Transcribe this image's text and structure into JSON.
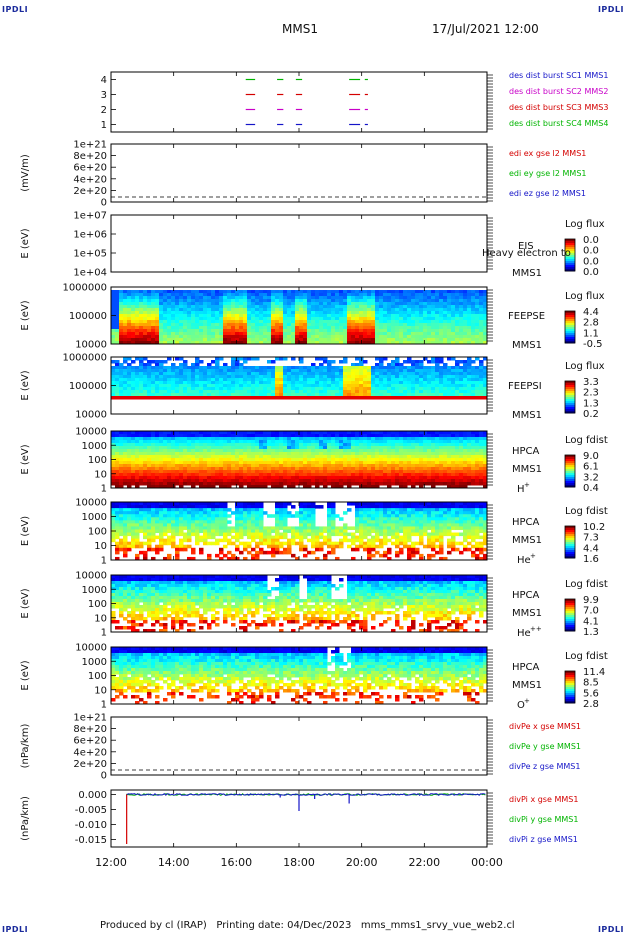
{
  "header": {
    "spacecraft": "MMS1",
    "datetime": "17/Jul/2021 12:00"
  },
  "corners": {
    "tl": "IPDLI",
    "tr": "IPDLI",
    "bl": "IPDLI",
    "br": "IPDLI"
  },
  "footer": {
    "produced": "Produced by cl (IRAP)",
    "printed": "Printing date: 04/Dec/2023",
    "script": "mms_mms1_srvy_vue_web2.cl"
  },
  "colors": {
    "sc1": "#1515c8",
    "sc2": "#c800c8",
    "sc3": "#d40000",
    "sc4": "#00b400",
    "frame": "#000000"
  },
  "chart_data": [
    {
      "type": "line",
      "panel": "burst",
      "ylim": [
        0.5,
        4.5
      ],
      "yticks": [
        "1",
        "2",
        "3",
        "4"
      ],
      "legend": [
        "des dist burst SC1 MMS1",
        "des dist burst SC2 MMS2",
        "des dist burst SC3 MMS3",
        "des dist burst SC4 MMS4"
      ],
      "series_colors": [
        "#1515c8",
        "#c800c8",
        "#d40000",
        "#00b400"
      ],
      "series": [
        {
          "level": 1,
          "intervals": [
            [
              16.3,
              16.6
            ],
            [
              17.3,
              17.5
            ],
            [
              17.9,
              18.1
            ],
            [
              19.6,
              19.95
            ],
            [
              20.1,
              20.2
            ]
          ]
        },
        {
          "level": 2,
          "intervals": [
            [
              16.3,
              16.6
            ],
            [
              17.3,
              17.5
            ],
            [
              17.9,
              18.1
            ],
            [
              19.6,
              19.95
            ],
            [
              20.1,
              20.2
            ]
          ]
        },
        {
          "level": 3,
          "intervals": [
            [
              16.3,
              16.6
            ],
            [
              17.3,
              17.5
            ],
            [
              17.9,
              18.1
            ],
            [
              19.6,
              19.95
            ],
            [
              20.1,
              20.2
            ]
          ]
        },
        {
          "level": 4,
          "intervals": [
            [
              16.3,
              16.6
            ],
            [
              17.3,
              17.5
            ],
            [
              17.9,
              18.1
            ],
            [
              19.6,
              19.95
            ],
            [
              20.1,
              20.2
            ]
          ]
        }
      ]
    },
    {
      "type": "line",
      "panel": "edi-e",
      "ylabel": "(mV/m)",
      "yticks": [
        "1e+21",
        "8e+20",
        "6e+20",
        "4e+20",
        "2e+20",
        "0"
      ],
      "legend": [
        "edi ex gse l2 MMS1",
        "edi ey gse l2 MMS1",
        "edi ez gse l2 MMS1"
      ],
      "series_colors": [
        "#d40000",
        "#00b400",
        "#1515c8"
      ],
      "zero_line": true
    },
    {
      "type": "heatmap",
      "panel": "EIS",
      "ylabel": "E (eV)",
      "yticks": [
        "1e+07",
        "1e+06",
        "1e+05",
        "1e+04"
      ],
      "instrument": "EIS",
      "spacecraft": "MMS1",
      "note": "Heavy electron to",
      "cbar_title": "Log flux",
      "cbar_ticks": [
        "0.0",
        "0.0",
        "0.0",
        "0.0"
      ],
      "empty": true
    },
    {
      "type": "heatmap",
      "panel": "FEEPSE",
      "ylabel": "E (eV)",
      "yticks": [
        "1000000",
        "100000",
        "10000"
      ],
      "instrument": "FEEPSE",
      "spacecraft": "MMS1",
      "cbar_title": "Log flux",
      "cbar_ticks": [
        "4.4",
        "2.8",
        "1.1",
        "-0.5"
      ],
      "enhancements": [
        [
          12.3,
          13.5
        ],
        [
          15.6,
          16.4
        ],
        [
          17.1,
          17.5
        ],
        [
          17.9,
          18.3
        ],
        [
          19.5,
          20.4
        ]
      ]
    },
    {
      "type": "heatmap",
      "panel": "FEEPSI",
      "ylabel": "E (eV)",
      "yticks": [
        "1000000",
        "100000",
        "10000"
      ],
      "instrument": "FEEPSI",
      "spacecraft": "MMS1",
      "cbar_title": "Log flux",
      "cbar_ticks": [
        "3.3",
        "2.3",
        "1.3",
        "0.2"
      ],
      "enhancements": [
        [
          17.2,
          17.5
        ],
        [
          19.4,
          20.3
        ]
      ]
    },
    {
      "type": "heatmap",
      "panel": "HPCA-H+",
      "ylabel": "E (eV)",
      "yticks": [
        "10000",
        "1000",
        "100",
        "10",
        "1"
      ],
      "instrument": "HPCA",
      "spacecraft": "MMS1",
      "species": "H",
      "charge": "+",
      "cbar_title": "Log fdist",
      "cbar_ticks": [
        "9.0",
        "6.1",
        "3.2",
        "0.4"
      ],
      "gaps": [
        [
          16.7,
          17.0
        ],
        [
          17.6,
          18.0
        ],
        [
          18.6,
          18.9
        ],
        [
          19.3,
          19.7
        ]
      ]
    },
    {
      "type": "heatmap",
      "panel": "HPCA-He+",
      "ylabel": "E (eV)",
      "yticks": [
        "10000",
        "1000",
        "100",
        "10",
        "1"
      ],
      "instrument": "HPCA",
      "spacecraft": "MMS1",
      "species": "He",
      "charge": "+",
      "cbar_title": "Log fdist",
      "cbar_ticks": [
        "10.2",
        "7.3",
        "4.4",
        "1.6"
      ],
      "gaps": [
        [
          15.7,
          16.0
        ],
        [
          16.8,
          17.2
        ],
        [
          17.6,
          18.0
        ],
        [
          18.5,
          18.9
        ],
        [
          19.2,
          19.8
        ]
      ]
    },
    {
      "type": "heatmap",
      "panel": "HPCA-He++",
      "ylabel": "E (eV)",
      "yticks": [
        "10000",
        "1000",
        "100",
        "10",
        "1"
      ],
      "instrument": "HPCA",
      "spacecraft": "MMS1",
      "species": "He",
      "charge": "++",
      "cbar_title": "Log fdist",
      "cbar_ticks": [
        "9.9",
        "7.0",
        "4.1",
        "1.3"
      ],
      "gaps": [
        [
          17.0,
          17.3
        ],
        [
          18.0,
          18.3
        ],
        [
          19.0,
          19.5
        ]
      ]
    },
    {
      "type": "heatmap",
      "panel": "HPCA-O+",
      "ylabel": "E (eV)",
      "yticks": [
        "10000",
        "1000",
        "100",
        "10",
        "1"
      ],
      "instrument": "HPCA",
      "spacecraft": "MMS1",
      "species": "O",
      "charge": "+",
      "cbar_title": "Log fdist",
      "cbar_ticks": [
        "11.4",
        "8.5",
        "5.6",
        "2.8"
      ],
      "gaps": [
        [
          18.9,
          19.1
        ],
        [
          19.3,
          19.6
        ]
      ]
    },
    {
      "type": "line",
      "panel": "divPe",
      "ylabel": "(nPa/km)",
      "yticks": [
        "1e+21",
        "8e+20",
        "6e+20",
        "4e+20",
        "2e+20",
        "0"
      ],
      "legend": [
        "divPe x gse MMS1",
        "divPe y gse MMS1",
        "divPe z gse MMS1"
      ],
      "series_colors": [
        "#d40000",
        "#00b400",
        "#1515c8"
      ],
      "zero_line": true
    },
    {
      "type": "line",
      "panel": "divPi",
      "ylabel": "(nPa/km)",
      "ylim": [
        -0.0175,
        0.0015
      ],
      "yticks": [
        "0.000",
        "-0.005",
        "-0.010",
        "-0.015"
      ],
      "legend": [
        "divPi x gse MMS1",
        "divPi y gse MMS1",
        "divPi z gse MMS1"
      ],
      "series_colors": [
        "#d40000",
        "#00b400",
        "#1515c8"
      ],
      "spikes": [
        {
          "series": 0,
          "x": 12.5,
          "y": -0.0165
        },
        {
          "series": 2,
          "x": 18.0,
          "y": -0.0055
        },
        {
          "series": 2,
          "x": 18.5,
          "y": -0.0015
        },
        {
          "series": 2,
          "x": 19.6,
          "y": -0.003
        },
        {
          "series": 2,
          "x": 17.4,
          "y": -0.001
        },
        {
          "series": 1,
          "x": 16.2,
          "y": 0.0004
        }
      ]
    }
  ],
  "xaxis": {
    "ticks": [
      "12:00",
      "14:00",
      "16:00",
      "18:00",
      "20:00",
      "22:00",
      "00:00"
    ],
    "range": [
      12,
      24
    ]
  }
}
